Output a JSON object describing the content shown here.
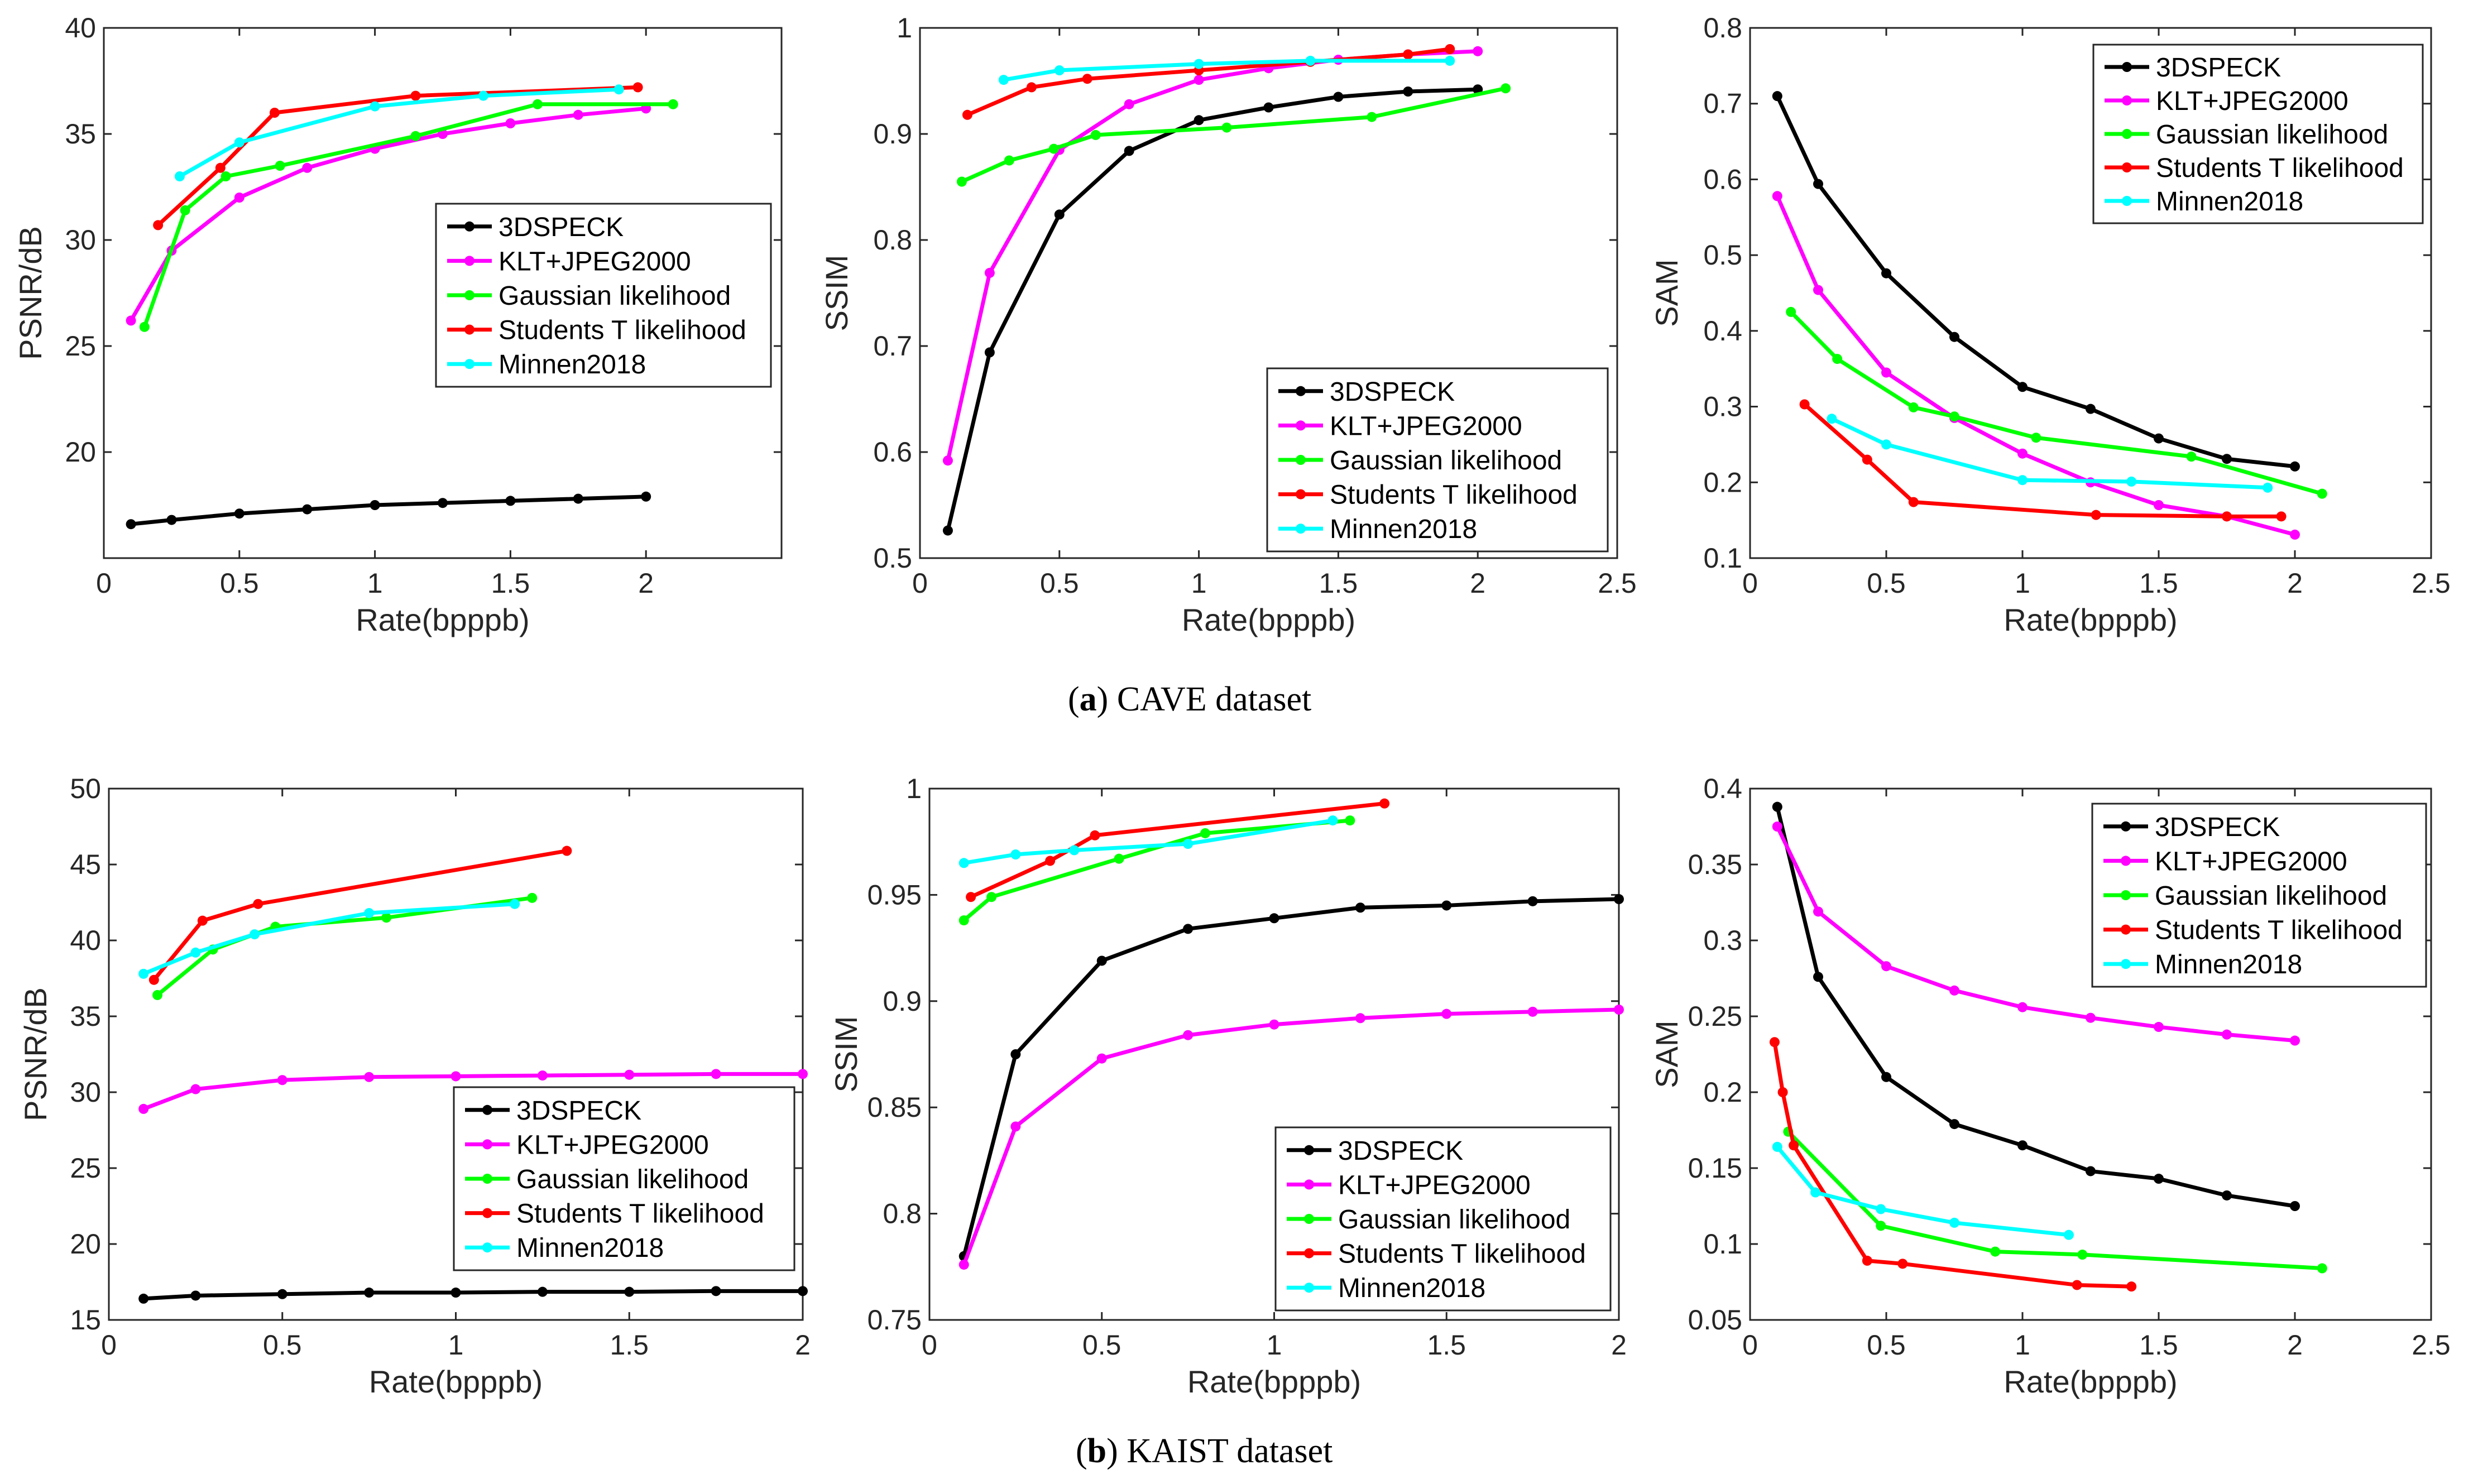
{
  "colors": {
    "3DSPECK": "#000000",
    "KLT+JPEG2000": "#ff00ff",
    "Gaussian likelihood": "#00ff00",
    "Students T likelihood": "#ff0000",
    "Minnen2018": "#00ffff"
  },
  "captions": {
    "a": {
      "label": "a",
      "text": "CAVE dataset"
    },
    "b": {
      "label": "b",
      "text": "KAIST dataset"
    }
  },
  "chart_data": [
    {
      "id": "cave-psnr",
      "type": "line",
      "xlabel": "Rate(bpppb)",
      "ylabel": "PSNR/dB",
      "xlim": [
        0,
        2.5
      ],
      "ylim": [
        15,
        40
      ],
      "xticks": [
        0,
        0.5,
        1,
        1.5,
        2
      ],
      "xtick_labels": [
        "0",
        "0.5",
        "1",
        "1.5",
        "2"
      ],
      "yticks": [
        20,
        25,
        30,
        35,
        40
      ],
      "ytick_labels": [
        "20",
        "25",
        "30",
        "35",
        "40"
      ],
      "legend": "middle-right",
      "series": [
        {
          "name": "3DSPECK",
          "x": [
            0.1,
            0.25,
            0.5,
            0.75,
            1.0,
            1.25,
            1.5,
            1.75,
            2.0
          ],
          "y": [
            16.6,
            16.8,
            17.1,
            17.3,
            17.5,
            17.6,
            17.7,
            17.8,
            17.9
          ]
        },
        {
          "name": "KLT+JPEG2000",
          "x": [
            0.1,
            0.25,
            0.5,
            0.75,
            1.0,
            1.25,
            1.5,
            1.75,
            2.0
          ],
          "y": [
            26.2,
            29.5,
            32.0,
            33.4,
            34.3,
            35.0,
            35.5,
            35.9,
            36.2
          ]
        },
        {
          "name": "Gaussian likelihood",
          "x": [
            0.15,
            0.3,
            0.45,
            0.65,
            1.15,
            1.6,
            2.1
          ],
          "y": [
            25.9,
            31.4,
            33.0,
            33.5,
            34.9,
            36.4,
            36.4
          ]
        },
        {
          "name": "Students T likelihood",
          "x": [
            0.2,
            0.43,
            0.63,
            1.15,
            1.97
          ],
          "y": [
            30.7,
            33.4,
            36.0,
            36.8,
            37.2
          ]
        },
        {
          "name": "Minnen2018",
          "x": [
            0.28,
            0.5,
            1.0,
            1.4,
            1.9
          ],
          "y": [
            33.0,
            34.6,
            36.3,
            36.8,
            37.1
          ]
        }
      ]
    },
    {
      "id": "cave-ssim",
      "type": "line",
      "xlabel": "Rate(bpppb)",
      "ylabel": "SSIM",
      "xlim": [
        0,
        2.5
      ],
      "ylim": [
        0.5,
        1
      ],
      "xticks": [
        0,
        0.5,
        1,
        1.5,
        2,
        2.5
      ],
      "xtick_labels": [
        "0",
        "0.5",
        "1",
        "1.5",
        "2",
        "2.5"
      ],
      "yticks": [
        0.5,
        0.6,
        0.7,
        0.8,
        0.9,
        1
      ],
      "ytick_labels": [
        "0.5",
        "0.6",
        "0.7",
        "0.8",
        "0.9",
        "1"
      ],
      "legend": "bottom-right",
      "series": [
        {
          "name": "3DSPECK",
          "x": [
            0.1,
            0.25,
            0.5,
            0.75,
            1.0,
            1.25,
            1.5,
            1.75,
            2.0
          ],
          "y": [
            0.526,
            0.694,
            0.824,
            0.884,
            0.913,
            0.925,
            0.935,
            0.94,
            0.942
          ]
        },
        {
          "name": "KLT+JPEG2000",
          "x": [
            0.1,
            0.25,
            0.5,
            0.75,
            1.0,
            1.25,
            1.5,
            1.75,
            2.0
          ],
          "y": [
            0.592,
            0.769,
            0.885,
            0.928,
            0.951,
            0.962,
            0.97,
            0.975,
            0.978
          ]
        },
        {
          "name": "Gaussian likelihood",
          "x": [
            0.15,
            0.32,
            0.48,
            0.63,
            1.1,
            1.62,
            2.1
          ],
          "y": [
            0.855,
            0.875,
            0.886,
            0.899,
            0.906,
            0.916,
            0.943
          ]
        },
        {
          "name": "Students T likelihood",
          "x": [
            0.17,
            0.4,
            0.6,
            1.0,
            1.4,
            1.75,
            1.9
          ],
          "y": [
            0.918,
            0.944,
            0.952,
            0.96,
            0.968,
            0.975,
            0.98
          ]
        },
        {
          "name": "Minnen2018",
          "x": [
            0.3,
            0.5,
            1.0,
            1.4,
            1.9
          ],
          "y": [
            0.951,
            0.96,
            0.966,
            0.969,
            0.969
          ]
        }
      ]
    },
    {
      "id": "cave-sam",
      "type": "line",
      "xlabel": "Rate(bpppb)",
      "ylabel": "SAM",
      "xlim": [
        0,
        2.5
      ],
      "ylim": [
        0.1,
        0.8
      ],
      "xticks": [
        0,
        0.5,
        1,
        1.5,
        2,
        2.5
      ],
      "xtick_labels": [
        "0",
        "0.5",
        "1",
        "1.5",
        "2",
        "2.5"
      ],
      "yticks": [
        0.1,
        0.2,
        0.3,
        0.4,
        0.5,
        0.6,
        0.7,
        0.8
      ],
      "ytick_labels": [
        "0.1",
        "0.2",
        "0.3",
        "0.4",
        "0.5",
        "0.6",
        "0.7",
        "0.8"
      ],
      "legend": "top-right",
      "series": [
        {
          "name": "3DSPECK",
          "x": [
            0.1,
            0.25,
            0.5,
            0.75,
            1.0,
            1.25,
            1.5,
            1.75,
            2.0
          ],
          "y": [
            0.71,
            0.594,
            0.476,
            0.392,
            0.326,
            0.297,
            0.258,
            0.231,
            0.221
          ]
        },
        {
          "name": "KLT+JPEG2000",
          "x": [
            0.1,
            0.25,
            0.5,
            0.75,
            1.0,
            1.25,
            1.5,
            1.75,
            2.0
          ],
          "y": [
            0.578,
            0.454,
            0.345,
            0.285,
            0.238,
            0.2,
            0.17,
            0.155,
            0.131
          ]
        },
        {
          "name": "Gaussian likelihood",
          "x": [
            0.15,
            0.32,
            0.6,
            0.75,
            1.05,
            1.62,
            2.1
          ],
          "y": [
            0.425,
            0.363,
            0.299,
            0.287,
            0.259,
            0.234,
            0.185
          ]
        },
        {
          "name": "Students T likelihood",
          "x": [
            0.2,
            0.43,
            0.6,
            1.27,
            1.75,
            1.95
          ],
          "y": [
            0.303,
            0.23,
            0.174,
            0.157,
            0.155,
            0.155
          ]
        },
        {
          "name": "Minnen2018",
          "x": [
            0.3,
            0.5,
            1.0,
            1.4,
            1.9
          ],
          "y": [
            0.284,
            0.25,
            0.203,
            0.201,
            0.193
          ]
        }
      ]
    },
    {
      "id": "kaist-psnr",
      "type": "line",
      "xlabel": "Rate(bpppb)",
      "ylabel": "PSNR/dB",
      "xlim": [
        0,
        2
      ],
      "ylim": [
        15,
        50
      ],
      "xticks": [
        0,
        0.5,
        1,
        1.5,
        2
      ],
      "xtick_labels": [
        "0",
        "0.5",
        "1",
        "1.5",
        "2"
      ],
      "yticks": [
        15,
        20,
        25,
        30,
        35,
        40,
        45,
        50
      ],
      "ytick_labels": [
        "15",
        "20",
        "25",
        "30",
        "35",
        "40",
        "45",
        "50"
      ],
      "legend": "bottom-right",
      "series": [
        {
          "name": "3DSPECK",
          "x": [
            0.1,
            0.25,
            0.5,
            0.75,
            1.0,
            1.25,
            1.5,
            1.75,
            2.0
          ],
          "y": [
            16.4,
            16.6,
            16.7,
            16.8,
            16.8,
            16.85,
            16.85,
            16.9,
            16.9
          ]
        },
        {
          "name": "KLT+JPEG2000",
          "x": [
            0.1,
            0.25,
            0.5,
            0.75,
            1.0,
            1.25,
            1.5,
            1.75,
            2.0
          ],
          "y": [
            28.9,
            30.2,
            30.8,
            31.0,
            31.05,
            31.1,
            31.15,
            31.2,
            31.2
          ]
        },
        {
          "name": "Gaussian likelihood",
          "x": [
            0.14,
            0.3,
            0.48,
            0.8,
            1.22
          ],
          "y": [
            36.4,
            39.4,
            40.9,
            41.5,
            42.8
          ]
        },
        {
          "name": "Students T likelihood",
          "x": [
            0.13,
            0.27,
            0.43,
            1.32
          ],
          "y": [
            37.4,
            41.3,
            42.4,
            45.9
          ]
        },
        {
          "name": "Minnen2018",
          "x": [
            0.1,
            0.25,
            0.42,
            0.75,
            1.17
          ],
          "y": [
            37.8,
            39.2,
            40.4,
            41.8,
            42.4
          ]
        }
      ]
    },
    {
      "id": "kaist-ssim",
      "type": "line",
      "xlabel": "Rate(bpppb)",
      "ylabel": "SSIM",
      "xlim": [
        0,
        2
      ],
      "ylim": [
        0.75,
        1
      ],
      "xticks": [
        0,
        0.5,
        1,
        1.5,
        2
      ],
      "xtick_labels": [
        "0",
        "0.5",
        "1",
        "1.5",
        "2"
      ],
      "yticks": [
        0.75,
        0.8,
        0.85,
        0.9,
        0.95,
        1
      ],
      "ytick_labels": [
        "0.75",
        "0.8",
        "0.85",
        "0.9",
        "0.95",
        "1"
      ],
      "legend": "bottom-right",
      "series": [
        {
          "name": "3DSPECK",
          "x": [
            0.1,
            0.25,
            0.5,
            0.75,
            1.0,
            1.25,
            1.5,
            1.75,
            2.0
          ],
          "y": [
            0.78,
            0.875,
            0.919,
            0.934,
            0.939,
            0.944,
            0.945,
            0.947,
            0.948
          ]
        },
        {
          "name": "KLT+JPEG2000",
          "x": [
            0.1,
            0.25,
            0.5,
            0.75,
            1.0,
            1.25,
            1.5,
            1.75,
            2.0
          ],
          "y": [
            0.776,
            0.841,
            0.873,
            0.884,
            0.889,
            0.892,
            0.894,
            0.895,
            0.896
          ]
        },
        {
          "name": "Gaussian likelihood",
          "x": [
            0.1,
            0.18,
            0.55,
            0.8,
            1.22
          ],
          "y": [
            0.938,
            0.949,
            0.967,
            0.979,
            0.985
          ]
        },
        {
          "name": "Students T likelihood",
          "x": [
            0.12,
            0.35,
            0.48,
            1.32
          ],
          "y": [
            0.949,
            0.966,
            0.978,
            0.993
          ]
        },
        {
          "name": "Minnen2018",
          "x": [
            0.1,
            0.25,
            0.42,
            0.75,
            1.17
          ],
          "y": [
            0.965,
            0.969,
            0.971,
            0.974,
            0.985
          ]
        }
      ]
    },
    {
      "id": "kaist-sam",
      "type": "line",
      "xlabel": "Rate(bpppb)",
      "ylabel": "SAM",
      "xlim": [
        0,
        2.5
      ],
      "ylim": [
        0.05,
        0.4
      ],
      "xticks": [
        0,
        0.5,
        1,
        1.5,
        2,
        2.5
      ],
      "xtick_labels": [
        "0",
        "0.5",
        "1",
        "1.5",
        "2",
        "2.5"
      ],
      "yticks": [
        0.05,
        0.1,
        0.15,
        0.2,
        0.25,
        0.3,
        0.35,
        0.4
      ],
      "ytick_labels": [
        "0.05",
        "0.1",
        "0.15",
        "0.2",
        "0.25",
        "0.3",
        "0.35",
        "0.4"
      ],
      "legend": "top-right",
      "series": [
        {
          "name": "3DSPECK",
          "x": [
            0.1,
            0.25,
            0.5,
            0.75,
            1.0,
            1.25,
            1.5,
            1.75,
            2.0
          ],
          "y": [
            0.388,
            0.276,
            0.21,
            0.179,
            0.165,
            0.148,
            0.143,
            0.132,
            0.125
          ]
        },
        {
          "name": "KLT+JPEG2000",
          "x": [
            0.1,
            0.25,
            0.5,
            0.75,
            1.0,
            1.25,
            1.5,
            1.75,
            2.0
          ],
          "y": [
            0.375,
            0.319,
            0.283,
            0.267,
            0.256,
            0.249,
            0.243,
            0.238,
            0.234
          ]
        },
        {
          "name": "Gaussian likelihood",
          "x": [
            0.14,
            0.48,
            0.9,
            1.22,
            2.1
          ],
          "y": [
            0.174,
            0.112,
            0.095,
            0.093,
            0.084
          ]
        },
        {
          "name": "Students T likelihood",
          "x": [
            0.09,
            0.12,
            0.16,
            0.43,
            0.56,
            1.2,
            1.4
          ],
          "y": [
            0.233,
            0.2,
            0.165,
            0.089,
            0.087,
            0.073,
            0.072
          ]
        },
        {
          "name": "Minnen2018",
          "x": [
            0.1,
            0.24,
            0.48,
            0.75,
            1.17
          ],
          "y": [
            0.164,
            0.134,
            0.123,
            0.114,
            0.106
          ]
        }
      ]
    }
  ]
}
